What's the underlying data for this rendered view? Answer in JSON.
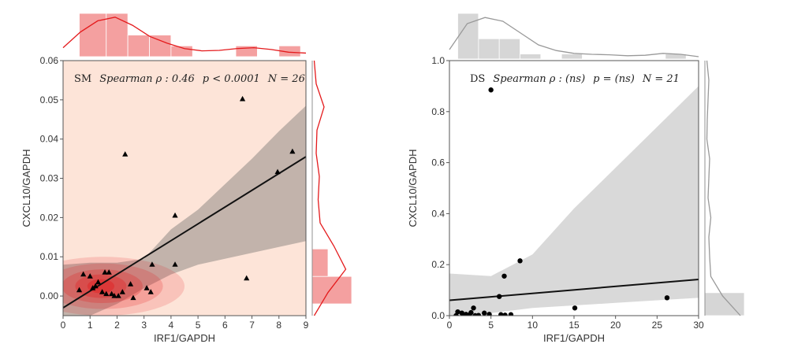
{
  "chart_data": [
    {
      "type": "scatter",
      "panel_tag": "SM",
      "annotation": {
        "tag": "SM",
        "stat_name": "Spearman",
        "rho": "ρ : 0.46",
        "p": "p < 0.0001",
        "n": "N = 26"
      },
      "xlabel": "IRF1/GAPDH",
      "ylabel": "CXCL10/GAPDH",
      "xlim": [
        0,
        9
      ],
      "ylim": [
        -0.005,
        0.06
      ],
      "xticks": [
        "0",
        "1",
        "2",
        "3",
        "4",
        "5",
        "6",
        "7",
        "8",
        "9"
      ],
      "yticks": [
        "0.00",
        "0.01",
        "0.02",
        "0.03",
        "0.04",
        "0.05",
        "0.06"
      ],
      "marker": "triangle",
      "colors": {
        "accent": "#e41a1c",
        "hist": "#f08080",
        "band_main": "#fde4d8",
        "band_ci": "#b7aaa3"
      },
      "regression": {
        "x": [
          0,
          9
        ],
        "y": [
          -0.003,
          0.0355
        ]
      },
      "ci_band": {
        "x": [
          0,
          1,
          2,
          3,
          4,
          5,
          6,
          7,
          8,
          9
        ],
        "upper": [
          0.008,
          0.0085,
          0.0085,
          0.0095,
          0.017,
          0.022,
          0.0285,
          0.035,
          0.042,
          0.0485
        ],
        "lower": [
          -0.005,
          -0.005,
          -0.002,
          0.002,
          0.0055,
          0.008,
          0.0095,
          0.011,
          0.0125,
          0.014
        ]
      },
      "points": [
        {
          "x": 6.65,
          "y": 0.0502
        },
        {
          "x": 8.5,
          "y": 0.0368
        },
        {
          "x": 2.3,
          "y": 0.0361
        },
        {
          "x": 7.95,
          "y": 0.0316
        },
        {
          "x": 4.15,
          "y": 0.0205
        },
        {
          "x": 6.8,
          "y": 0.0045
        },
        {
          "x": 0.75,
          "y": 0.0055
        },
        {
          "x": 1.0,
          "y": 0.005
        },
        {
          "x": 1.2,
          "y": 0.0025
        },
        {
          "x": 1.3,
          "y": 0.0035
        },
        {
          "x": 1.45,
          "y": 0.001
        },
        {
          "x": 1.55,
          "y": 0.006
        },
        {
          "x": 1.7,
          "y": 0.006
        },
        {
          "x": 1.8,
          "y": 0.0005
        },
        {
          "x": 1.9,
          "y": 0.0
        },
        {
          "x": 2.05,
          "y": 0.0
        },
        {
          "x": 2.5,
          "y": 0.003
        },
        {
          "x": 2.6,
          "y": -0.0005
        },
        {
          "x": 3.1,
          "y": 0.002
        },
        {
          "x": 3.25,
          "y": 0.001
        },
        {
          "x": 3.3,
          "y": 0.008
        },
        {
          "x": 4.15,
          "y": 0.008
        },
        {
          "x": 0.6,
          "y": 0.0015
        },
        {
          "x": 1.1,
          "y": 0.002
        },
        {
          "x": 1.6,
          "y": 0.0005
        },
        {
          "x": 2.2,
          "y": 0.001
        }
      ],
      "kde_blobs": [
        {
          "cx": 1.5,
          "cy": 0.0025,
          "rx": 3.0,
          "ry": 0.0075,
          "opacity": 0.16
        },
        {
          "cx": 1.5,
          "cy": 0.0025,
          "rx": 2.2,
          "ry": 0.0058,
          "opacity": 0.2
        },
        {
          "cx": 1.45,
          "cy": 0.0025,
          "rx": 1.5,
          "ry": 0.0043,
          "opacity": 0.26
        },
        {
          "cx": 1.4,
          "cy": 0.0025,
          "rx": 0.95,
          "ry": 0.003,
          "opacity": 0.32
        },
        {
          "cx": 1.4,
          "cy": 0.0025,
          "rx": 0.5,
          "ry": 0.0018,
          "opacity": 0.4
        }
      ],
      "top_hist": {
        "bin_edges": [
          0.6,
          1.6,
          2.4,
          3.2,
          4.0,
          4.8,
          5.6,
          6.4,
          7.2,
          8.0,
          8.8
        ],
        "counts": [
          8,
          8,
          4,
          4,
          2,
          0,
          0,
          2,
          0,
          2
        ],
        "kde_y": [
          0.2,
          0.55,
          0.8,
          0.88,
          0.7,
          0.45,
          0.3,
          0.18,
          0.13,
          0.14,
          0.18,
          0.2,
          0.16,
          0.1,
          0.08
        ]
      },
      "right_hist": {
        "bin_edges": [
          -0.002,
          0.005,
          0.012
        ],
        "counts": [
          10,
          4
        ],
        "kde_x_ratio": [
          0.05,
          0.4,
          0.85,
          0.55,
          0.2,
          0.15,
          0.18,
          0.1,
          0.12,
          0.3,
          0.1,
          0.05
        ]
      }
    },
    {
      "type": "scatter",
      "panel_tag": "DS",
      "annotation": {
        "tag": "DS",
        "stat_name": "Spearman",
        "rho": "ρ : (ns)",
        "p": "p = (ns)",
        "n": "N = 21"
      },
      "xlabel": "IRF1/GAPDH",
      "ylabel": "CXCL10/GAPDH",
      "xlim": [
        0,
        30
      ],
      "ylim": [
        0,
        1.0
      ],
      "xticks": [
        "0",
        "5",
        "10",
        "15",
        "20",
        "25",
        "30"
      ],
      "yticks": [
        "0.0",
        "0.2",
        "0.4",
        "0.6",
        "0.8",
        "1.0"
      ],
      "marker": "circle",
      "colors": {
        "band_ci": "#d9d9d9",
        "hist": "#c8c8c8",
        "line": "#999999"
      },
      "regression": {
        "x": [
          0,
          30
        ],
        "y": [
          0.06,
          0.142
        ]
      },
      "ci_band": {
        "x": [
          0,
          5,
          10,
          15,
          20,
          25,
          30
        ],
        "upper": [
          0.165,
          0.155,
          0.24,
          0.42,
          0.58,
          0.74,
          0.9
        ],
        "lower": [
          -0.01,
          0.01,
          0.03,
          0.04,
          0.05,
          0.06,
          0.07
        ]
      },
      "points": [
        {
          "x": 5.0,
          "y": 0.885
        },
        {
          "x": 8.5,
          "y": 0.215
        },
        {
          "x": 6.6,
          "y": 0.155
        },
        {
          "x": 6.0,
          "y": 0.075
        },
        {
          "x": 26.2,
          "y": 0.07
        },
        {
          "x": 15.1,
          "y": 0.03
        },
        {
          "x": 2.9,
          "y": 0.03
        },
        {
          "x": 1.0,
          "y": 0.015
        },
        {
          "x": 1.5,
          "y": 0.01
        },
        {
          "x": 2.0,
          "y": 0.005
        },
        {
          "x": 2.4,
          "y": 0.002
        },
        {
          "x": 3.5,
          "y": 0.001
        },
        {
          "x": 4.2,
          "y": 0.01
        },
        {
          "x": 4.8,
          "y": 0.005
        },
        {
          "x": 6.2,
          "y": 0.004
        },
        {
          "x": 6.7,
          "y": 0.002
        },
        {
          "x": 7.4,
          "y": 0.004
        },
        {
          "x": 3.1,
          "y": 0.0
        },
        {
          "x": 1.8,
          "y": 0.003
        },
        {
          "x": 0.8,
          "y": 0.0
        },
        {
          "x": 2.6,
          "y": 0.012
        }
      ],
      "top_hist": {
        "bin_edges": [
          1.0,
          3.5,
          6.0,
          8.5,
          11.0,
          13.5,
          16.0,
          18.5,
          21.0,
          23.5,
          26.0,
          28.5
        ],
        "counts": [
          9,
          4,
          4,
          1,
          0,
          1,
          0,
          0,
          0,
          0,
          1
        ],
        "kde_y": [
          0.2,
          0.75,
          0.88,
          0.8,
          0.55,
          0.3,
          0.18,
          0.12,
          0.1,
          0.09,
          0.07,
          0.08,
          0.12,
          0.1,
          0.05
        ]
      },
      "right_hist": {
        "bin_edges": [
          0.0,
          0.09
        ],
        "counts": [
          17
        ],
        "kde_x_ratio": [
          0.9,
          0.45,
          0.15,
          0.12,
          0.1,
          0.15,
          0.08,
          0.1,
          0.12,
          0.05,
          0.06,
          0.08,
          0.1,
          0.05
        ]
      }
    }
  ]
}
